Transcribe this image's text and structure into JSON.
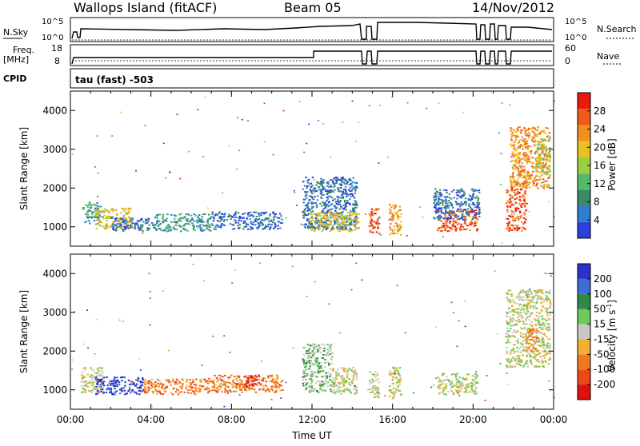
{
  "header": {
    "station": "Wallops Island (fitACF)",
    "beam": "Beam 05",
    "date": "14/Nov/2012"
  },
  "top_panels": {
    "nsky_label": "N.Sky",
    "nsky_ticks": [
      "10^5",
      "10^0"
    ],
    "nsearch_label": "N.Search",
    "nsearch_ticks": [
      "10^5",
      "10^0"
    ],
    "freq_label_line1": "Freq.",
    "freq_label_line2": "[MHz]",
    "freq_ticks": [
      "18",
      "8"
    ],
    "nave_label": "Nave",
    "nave_ticks": [
      "60",
      "0"
    ],
    "cpid_label": "CPID",
    "cpid_text": "tau (fast) -503"
  },
  "chart_data": [
    {
      "type": "heatmap",
      "name": "power",
      "ylabel": "Slant Range [km]",
      "y_ticks": [
        1000,
        2000,
        3000,
        4000
      ],
      "ylim": [
        500,
        4500
      ],
      "xlim": [
        0,
        24
      ],
      "colorbar": {
        "label": "Power [dB]",
        "ticks": [
          "4",
          "8",
          "12",
          "16",
          "20",
          "24",
          "28"
        ],
        "colors": [
          "#2b3ee0",
          "#2f7fd0",
          "#3a8a6a",
          "#55b868",
          "#9ad040",
          "#e8c020",
          "#f09020",
          "#f05a18",
          "#e81a10"
        ]
      },
      "regions": [
        {
          "t0": 0.6,
          "t1": 1.5,
          "r0": 1100,
          "r1": 1650,
          "c": 2
        },
        {
          "t0": 1.2,
          "t1": 3.0,
          "r0": 950,
          "r1": 1500,
          "c": 5
        },
        {
          "t0": 2.0,
          "t1": 4.0,
          "r0": 900,
          "r1": 1250,
          "c": 1
        },
        {
          "t0": 4.0,
          "t1": 7.0,
          "r0": 900,
          "r1": 1350,
          "c": 2
        },
        {
          "t0": 7.0,
          "t1": 10.5,
          "r0": 950,
          "r1": 1400,
          "c": 1
        },
        {
          "t0": 11.5,
          "t1": 14.2,
          "r0": 950,
          "r1": 2300,
          "c": 1
        },
        {
          "t0": 11.8,
          "t1": 14.3,
          "r0": 900,
          "r1": 1400,
          "c": 5
        },
        {
          "t0": 14.8,
          "t1": 15.3,
          "r0": 800,
          "r1": 1500,
          "c": 7
        },
        {
          "t0": 15.8,
          "t1": 16.4,
          "r0": 800,
          "r1": 1600,
          "c": 6
        },
        {
          "t0": 18.2,
          "t1": 20.2,
          "r0": 900,
          "r1": 1450,
          "c": 7
        },
        {
          "t0": 18.0,
          "t1": 20.3,
          "r0": 1200,
          "r1": 2000,
          "c": 1
        },
        {
          "t0": 21.6,
          "t1": 22.6,
          "r0": 900,
          "r1": 2200,
          "c": 7
        },
        {
          "t0": 21.8,
          "t1": 23.8,
          "r0": 2000,
          "r1": 3600,
          "c": 6
        },
        {
          "t0": 23.0,
          "t1": 23.8,
          "r0": 2400,
          "r1": 3300,
          "c": 4
        }
      ]
    },
    {
      "type": "heatmap",
      "name": "velocity",
      "ylabel": "Slant Range [km]",
      "y_ticks": [
        1000,
        2000,
        3000,
        4000
      ],
      "ylim": [
        500,
        4500
      ],
      "xlim": [
        0,
        24
      ],
      "xlabel": "Time UT",
      "x_ticks": [
        "00:00",
        "04:00",
        "08:00",
        "12:00",
        "16:00",
        "20:00",
        "00:00"
      ],
      "colorbar": {
        "label_prefix": "Velocity [m s",
        "label_sup": "-1",
        "label_suffix": "]",
        "ticks": [
          "200",
          "100",
          "50",
          "15",
          "-15",
          "-50",
          "-100",
          "-200"
        ],
        "colors": [
          "#2a32c8",
          "#3f6ad8",
          "#2f8a4a",
          "#6ec85a",
          "#c8c8c0",
          "#f0b030",
          "#f07820",
          "#ec4818",
          "#e01010"
        ]
      },
      "regions": [
        {
          "t0": 0.5,
          "t1": 1.6,
          "r0": 950,
          "r1": 1600,
          "c": 4
        },
        {
          "t0": 1.2,
          "t1": 3.6,
          "r0": 900,
          "r1": 1350,
          "c": 0
        },
        {
          "t0": 3.6,
          "t1": 6.8,
          "r0": 900,
          "r1": 1300,
          "c": 6
        },
        {
          "t0": 6.8,
          "t1": 10.5,
          "r0": 950,
          "r1": 1400,
          "c": 6
        },
        {
          "t0": 8.6,
          "t1": 9.4,
          "r0": 1100,
          "r1": 1400,
          "c": 8
        },
        {
          "t0": 11.5,
          "t1": 13.0,
          "r0": 950,
          "r1": 2200,
          "c": 3
        },
        {
          "t0": 13.0,
          "t1": 14.2,
          "r0": 900,
          "r1": 1600,
          "c": 4
        },
        {
          "t0": 14.8,
          "t1": 15.3,
          "r0": 800,
          "r1": 1500,
          "c": 4
        },
        {
          "t0": 15.8,
          "t1": 16.4,
          "r0": 800,
          "r1": 1600,
          "c": 4
        },
        {
          "t0": 18.2,
          "t1": 20.2,
          "r0": 900,
          "r1": 1450,
          "c": 4
        },
        {
          "t0": 21.6,
          "t1": 23.8,
          "r0": 1600,
          "r1": 3600,
          "c": 4
        },
        {
          "t0": 22.6,
          "t1": 23.2,
          "r0": 2000,
          "r1": 2600,
          "c": 6
        }
      ]
    }
  ]
}
